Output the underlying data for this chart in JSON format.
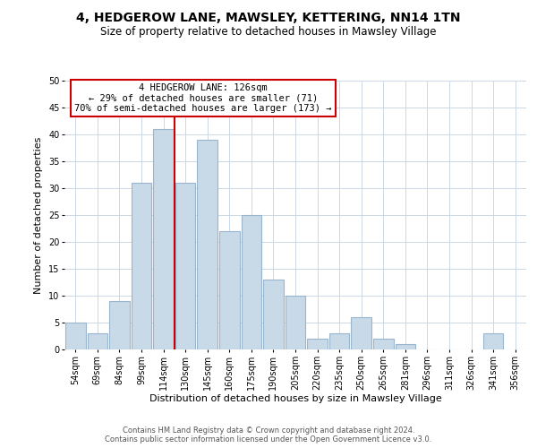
{
  "title": "4, HEDGEROW LANE, MAWSLEY, KETTERING, NN14 1TN",
  "subtitle": "Size of property relative to detached houses in Mawsley Village",
  "xlabel": "Distribution of detached houses by size in Mawsley Village",
  "ylabel": "Number of detached properties",
  "footer_line1": "Contains HM Land Registry data © Crown copyright and database right 2024.",
  "footer_line2": "Contains public sector information licensed under the Open Government Licence v3.0.",
  "bar_labels": [
    "54sqm",
    "69sqm",
    "84sqm",
    "99sqm",
    "114sqm",
    "130sqm",
    "145sqm",
    "160sqm",
    "175sqm",
    "190sqm",
    "205sqm",
    "220sqm",
    "235sqm",
    "250sqm",
    "265sqm",
    "281sqm",
    "296sqm",
    "311sqm",
    "326sqm",
    "341sqm",
    "356sqm"
  ],
  "bar_values": [
    5,
    3,
    9,
    31,
    41,
    31,
    39,
    22,
    25,
    13,
    10,
    2,
    3,
    6,
    2,
    1,
    0,
    0,
    0,
    3,
    0
  ],
  "bar_color": "#c8d9e8",
  "bar_edge_color": "#9ab5cc",
  "annotation_box_text": "4 HEDGEROW LANE: 126sqm\n← 29% of detached houses are smaller (71)\n70% of semi-detached houses are larger (173) →",
  "vline_color": "#cc0000",
  "annotation_box_color": "#ffffff",
  "annotation_box_edgecolor": "#cc0000",
  "ylim": [
    0,
    50
  ],
  "yticks": [
    0,
    5,
    10,
    15,
    20,
    25,
    30,
    35,
    40,
    45,
    50
  ],
  "background_color": "#ffffff",
  "grid_color": "#ccd8e4",
  "title_fontsize": 10,
  "subtitle_fontsize": 8.5,
  "ylabel_fontsize": 8,
  "xlabel_fontsize": 8,
  "tick_fontsize": 7,
  "footer_fontsize": 6,
  "footer_color": "#555555"
}
